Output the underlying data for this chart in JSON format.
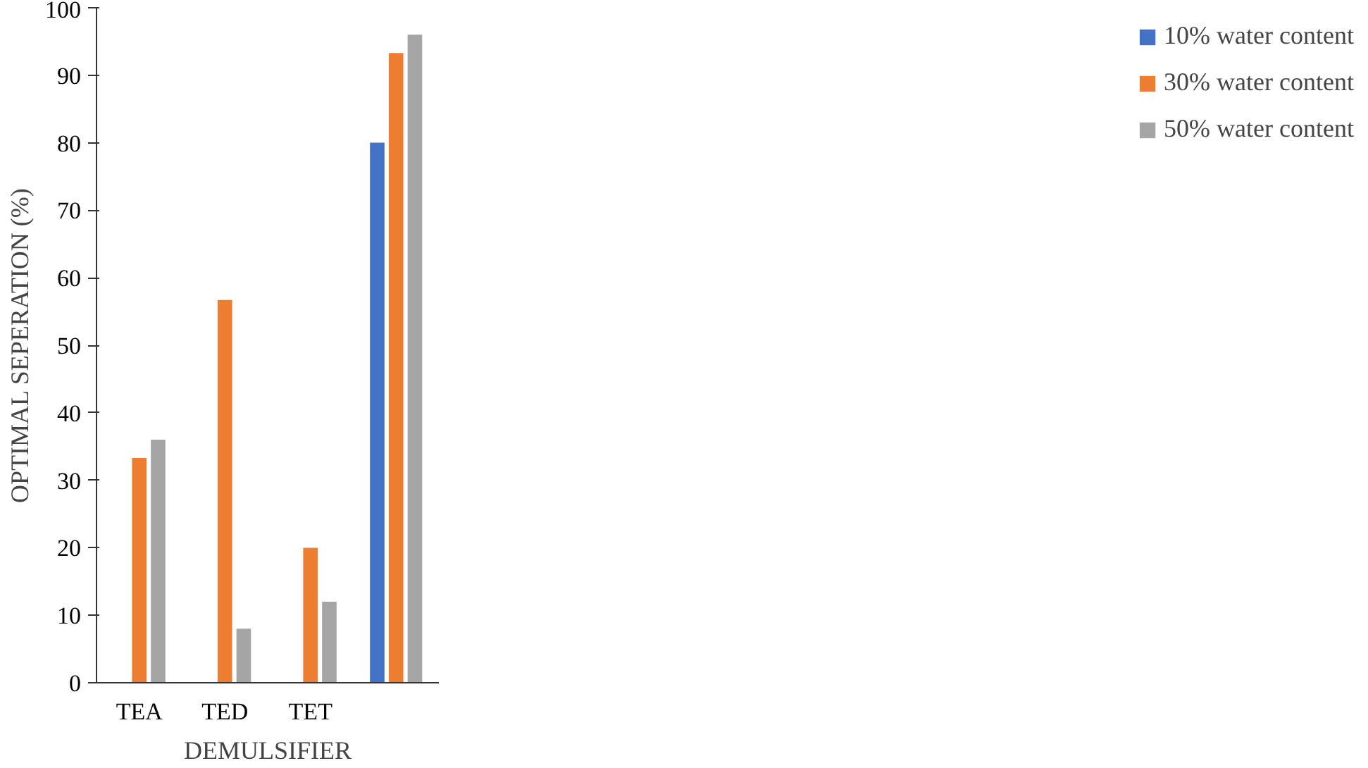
{
  "chart_data": {
    "type": "bar",
    "xlabel": "DEMULSIFIER",
    "ylabel": "OPTIMAL SEPERATION (%)",
    "categories": [
      "TEA",
      "TED",
      "TET",
      null
    ],
    "series": [
      {
        "name": "10% water content",
        "color": "#4472c4",
        "values": [
          null,
          null,
          null,
          80
        ]
      },
      {
        "name": "30% water content",
        "color": "#ed7d31",
        "values": [
          33.3,
          56.7,
          20,
          93.3
        ]
      },
      {
        "name": "50% water content",
        "color": "#a5a5a5",
        "values": [
          36,
          8,
          12,
          96
        ]
      }
    ],
    "ylim": [
      0,
      100
    ],
    "yticks": [
      0,
      10,
      20,
      30,
      40,
      50,
      60,
      70,
      80,
      90,
      100
    ],
    "grid": false,
    "legend": "right"
  }
}
